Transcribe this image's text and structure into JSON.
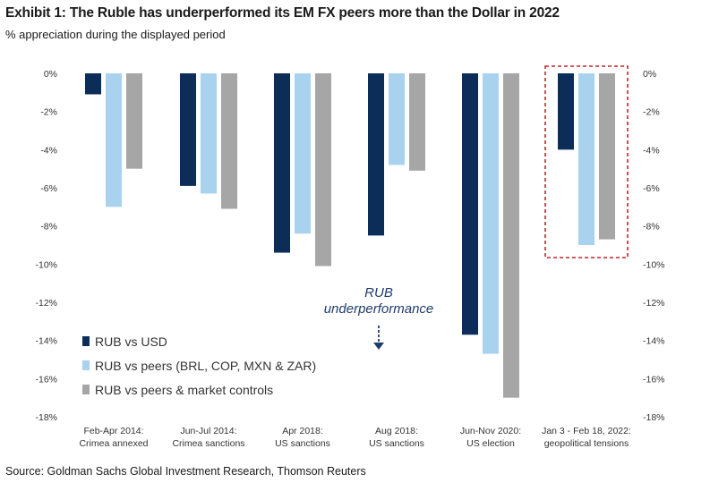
{
  "header": {
    "title": "Exhibit 1: The Ruble has underperformed its EM FX peers more than the Dollar in 2022",
    "subtitle": "% appreciation during the displayed period"
  },
  "footer": {
    "source": "Source: Goldman Sachs Global Investment Research, Thomson Reuters"
  },
  "chart_data": {
    "type": "bar",
    "title": "Exhibit 1: The Ruble has underperformed its EM FX peers more than the Dollar in 2022",
    "ylabel": "% appreciation during the displayed period",
    "ylim": [
      -18,
      0
    ],
    "yticks": [
      0,
      -2,
      -4,
      -6,
      -8,
      -10,
      -12,
      -14,
      -16,
      -18
    ],
    "ytick_labels": [
      "0%",
      "-2%",
      "-4%",
      "-6%",
      "-8%",
      "-10%",
      "-12%",
      "-14%",
      "-16%",
      "-18%"
    ],
    "categories": [
      [
        "Feb-Apr 2014:",
        "Crimea annexed"
      ],
      [
        "Jun-Jul 2014:",
        "Crimea sanctions"
      ],
      [
        "Apr 2018:",
        "US sanctions"
      ],
      [
        "Aug 2018:",
        "US sanctions"
      ],
      [
        "Jun-Nov 2020:",
        "US election"
      ],
      [
        "Jan 3 - Feb 18, 2022:",
        "geopolitical tensions"
      ]
    ],
    "series": [
      {
        "name": "RUB vs USD",
        "color": "#0d2d59",
        "values": [
          -1.1,
          -5.9,
          -9.4,
          -8.5,
          -13.7,
          -4.0
        ]
      },
      {
        "name": "RUB vs peers (BRL, COP, MXN & ZAR)",
        "color": "#a9d2ef",
        "values": [
          -7.0,
          -6.3,
          -8.4,
          -4.8,
          -14.7,
          -9.0
        ]
      },
      {
        "name": "RUB vs peers & market controls",
        "color": "#a6a6a6",
        "values": [
          -5.0,
          -7.1,
          -10.1,
          -5.1,
          -17.0,
          -8.7
        ]
      }
    ],
    "annotation": {
      "lines": [
        "RUB",
        "underperformance"
      ],
      "color": "#1f3d6b"
    },
    "highlight": {
      "category_index": 5,
      "color": "#c0262c"
    },
    "legend_position": "bottom-left",
    "grid": false
  }
}
